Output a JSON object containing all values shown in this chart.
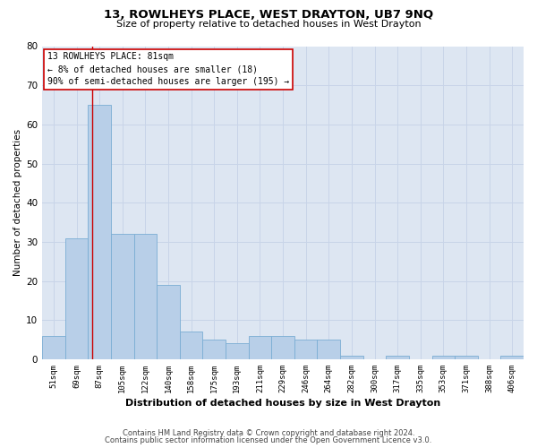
{
  "title": "13, ROWLHEYS PLACE, WEST DRAYTON, UB7 9NQ",
  "subtitle": "Size of property relative to detached houses in West Drayton",
  "xlabel": "Distribution of detached houses by size in West Drayton",
  "ylabel": "Number of detached properties",
  "categories": [
    "51sqm",
    "69sqm",
    "87sqm",
    "105sqm",
    "122sqm",
    "140sqm",
    "158sqm",
    "175sqm",
    "193sqm",
    "211sqm",
    "229sqm",
    "246sqm",
    "264sqm",
    "282sqm",
    "300sqm",
    "317sqm",
    "335sqm",
    "353sqm",
    "371sqm",
    "388sqm",
    "406sqm"
  ],
  "values": [
    6,
    31,
    65,
    32,
    32,
    19,
    7,
    5,
    4,
    6,
    6,
    5,
    5,
    1,
    0,
    1,
    0,
    1,
    1,
    0,
    1
  ],
  "bar_color": "#b8cfe8",
  "bar_edge_color": "#7aadd4",
  "annotation_line_color": "#cc0000",
  "annotation_box_text": "13 ROWLHEYS PLACE: 81sqm\n← 8% of detached houses are smaller (18)\n90% of semi-detached houses are larger (195) →",
  "annotation_box_color": "#ffffff",
  "annotation_box_edge_color": "#cc0000",
  "grid_color": "#c8d4e8",
  "background_color": "#dde6f2",
  "ylim": [
    0,
    80
  ],
  "yticks": [
    0,
    10,
    20,
    30,
    40,
    50,
    60,
    70,
    80
  ],
  "footer_line1": "Contains HM Land Registry data © Crown copyright and database right 2024.",
  "footer_line2": "Contains public sector information licensed under the Open Government Licence v3.0."
}
